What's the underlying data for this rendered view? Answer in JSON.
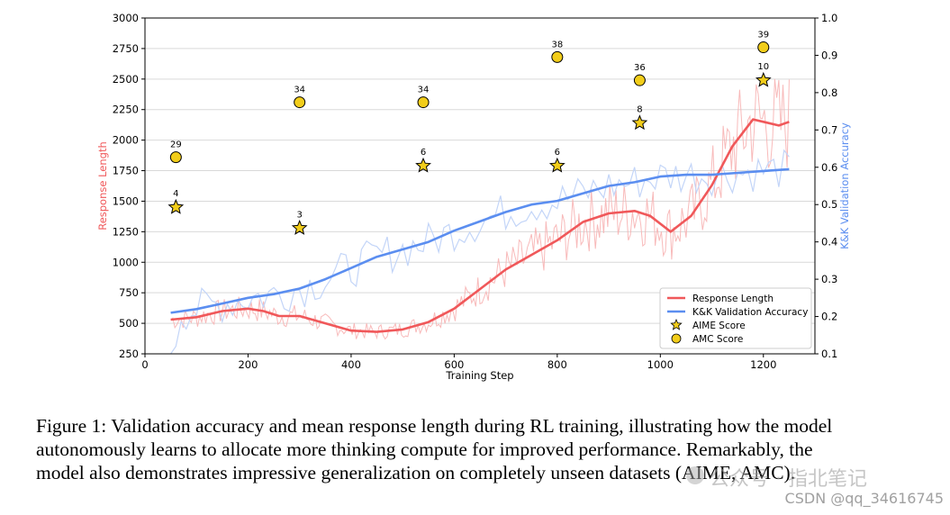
{
  "chart_data": {
    "type": "line",
    "title": "",
    "xlabel": "Training Step",
    "ylabel_left": "Response Length",
    "ylabel_right": "K&K Validation Accuracy",
    "xlim": [
      0,
      1300
    ],
    "ylim_left": [
      250,
      3000
    ],
    "ylim_right": [
      0.1,
      1.0
    ],
    "x_ticks": [
      0,
      200,
      400,
      600,
      800,
      1000,
      1200
    ],
    "y_left_ticks": [
      250,
      500,
      750,
      1000,
      1250,
      1500,
      1750,
      2000,
      2250,
      2500,
      2750,
      3000
    ],
    "y_right_ticks": [
      0.1,
      0.2,
      0.3,
      0.4,
      0.5,
      0.6,
      0.7,
      0.8,
      0.9,
      1.0
    ],
    "grid": "horizontal",
    "legend_position": "lower-right",
    "legend": [
      "Response Length",
      "K&K Validation Accuracy",
      "AIME Score",
      "AMC Score"
    ],
    "series": [
      {
        "name": "Response Length",
        "axis": "left",
        "color": "#f0585a",
        "x": [
          50,
          100,
          150,
          200,
          230,
          260,
          300,
          350,
          400,
          450,
          500,
          550,
          600,
          650,
          700,
          750,
          800,
          850,
          900,
          950,
          980,
          1020,
          1060,
          1100,
          1140,
          1180,
          1200,
          1230,
          1250
        ],
        "values": [
          530,
          550,
          600,
          620,
          600,
          560,
          560,
          500,
          440,
          430,
          450,
          510,
          620,
          780,
          940,
          1060,
          1180,
          1330,
          1400,
          1420,
          1380,
          1250,
          1380,
          1630,
          1950,
          2170,
          2150,
          2120,
          2150
        ]
      },
      {
        "name": "K&K Validation Accuracy",
        "axis": "right",
        "color": "#5b8ef0",
        "x": [
          50,
          100,
          150,
          200,
          250,
          300,
          350,
          400,
          450,
          500,
          550,
          600,
          650,
          700,
          750,
          800,
          850,
          900,
          950,
          1000,
          1050,
          1100,
          1150,
          1200,
          1250
        ],
        "values": [
          0.21,
          0.22,
          0.235,
          0.25,
          0.26,
          0.275,
          0.3,
          0.33,
          0.36,
          0.38,
          0.4,
          0.43,
          0.455,
          0.48,
          0.5,
          0.51,
          0.53,
          0.55,
          0.56,
          0.575,
          0.58,
          0.58,
          0.585,
          0.59,
          0.595
        ]
      }
    ],
    "scatter": [
      {
        "name": "AIME Score",
        "marker": "star",
        "axis": "left",
        "points": [
          {
            "x": 60,
            "y": 1450,
            "label": "4"
          },
          {
            "x": 300,
            "y": 1280,
            "label": "3"
          },
          {
            "x": 540,
            "y": 1790,
            "label": "6"
          },
          {
            "x": 800,
            "y": 1790,
            "label": "6"
          },
          {
            "x": 960,
            "y": 2140,
            "label": "8"
          },
          {
            "x": 1200,
            "y": 2490,
            "label": "10"
          }
        ]
      },
      {
        "name": "AMC Score",
        "marker": "circle",
        "axis": "left",
        "points": [
          {
            "x": 60,
            "y": 1860,
            "label": "29"
          },
          {
            "x": 300,
            "y": 2310,
            "label": "34"
          },
          {
            "x": 540,
            "y": 2310,
            "label": "34"
          },
          {
            "x": 800,
            "y": 2680,
            "label": "38"
          },
          {
            "x": 960,
            "y": 2490,
            "label": "36"
          },
          {
            "x": 1200,
            "y": 2760,
            "label": "39"
          }
        ]
      }
    ]
  },
  "caption": {
    "line1": "Figure 1: Validation accuracy and mean response length during RL training, illustrating how the model",
    "line2": "autonomously learns to allocate more thinking compute for improved performance. Remarkably, the",
    "line3": "model also demonstrates impressive generalization on completely unseen datasets (AIME, AMC)."
  },
  "watermark": {
    "line1": "公众号 · 指北笔记",
    "line2": "CSDN @qq_34616745"
  },
  "colors": {
    "response": "#f0585a",
    "response_raw": "#f7b3b3",
    "accuracy": "#5b8ef0",
    "accuracy_raw": "#c3d5f8",
    "marker_fill": "#f2cd1a",
    "grid": "#d9d9d9"
  }
}
